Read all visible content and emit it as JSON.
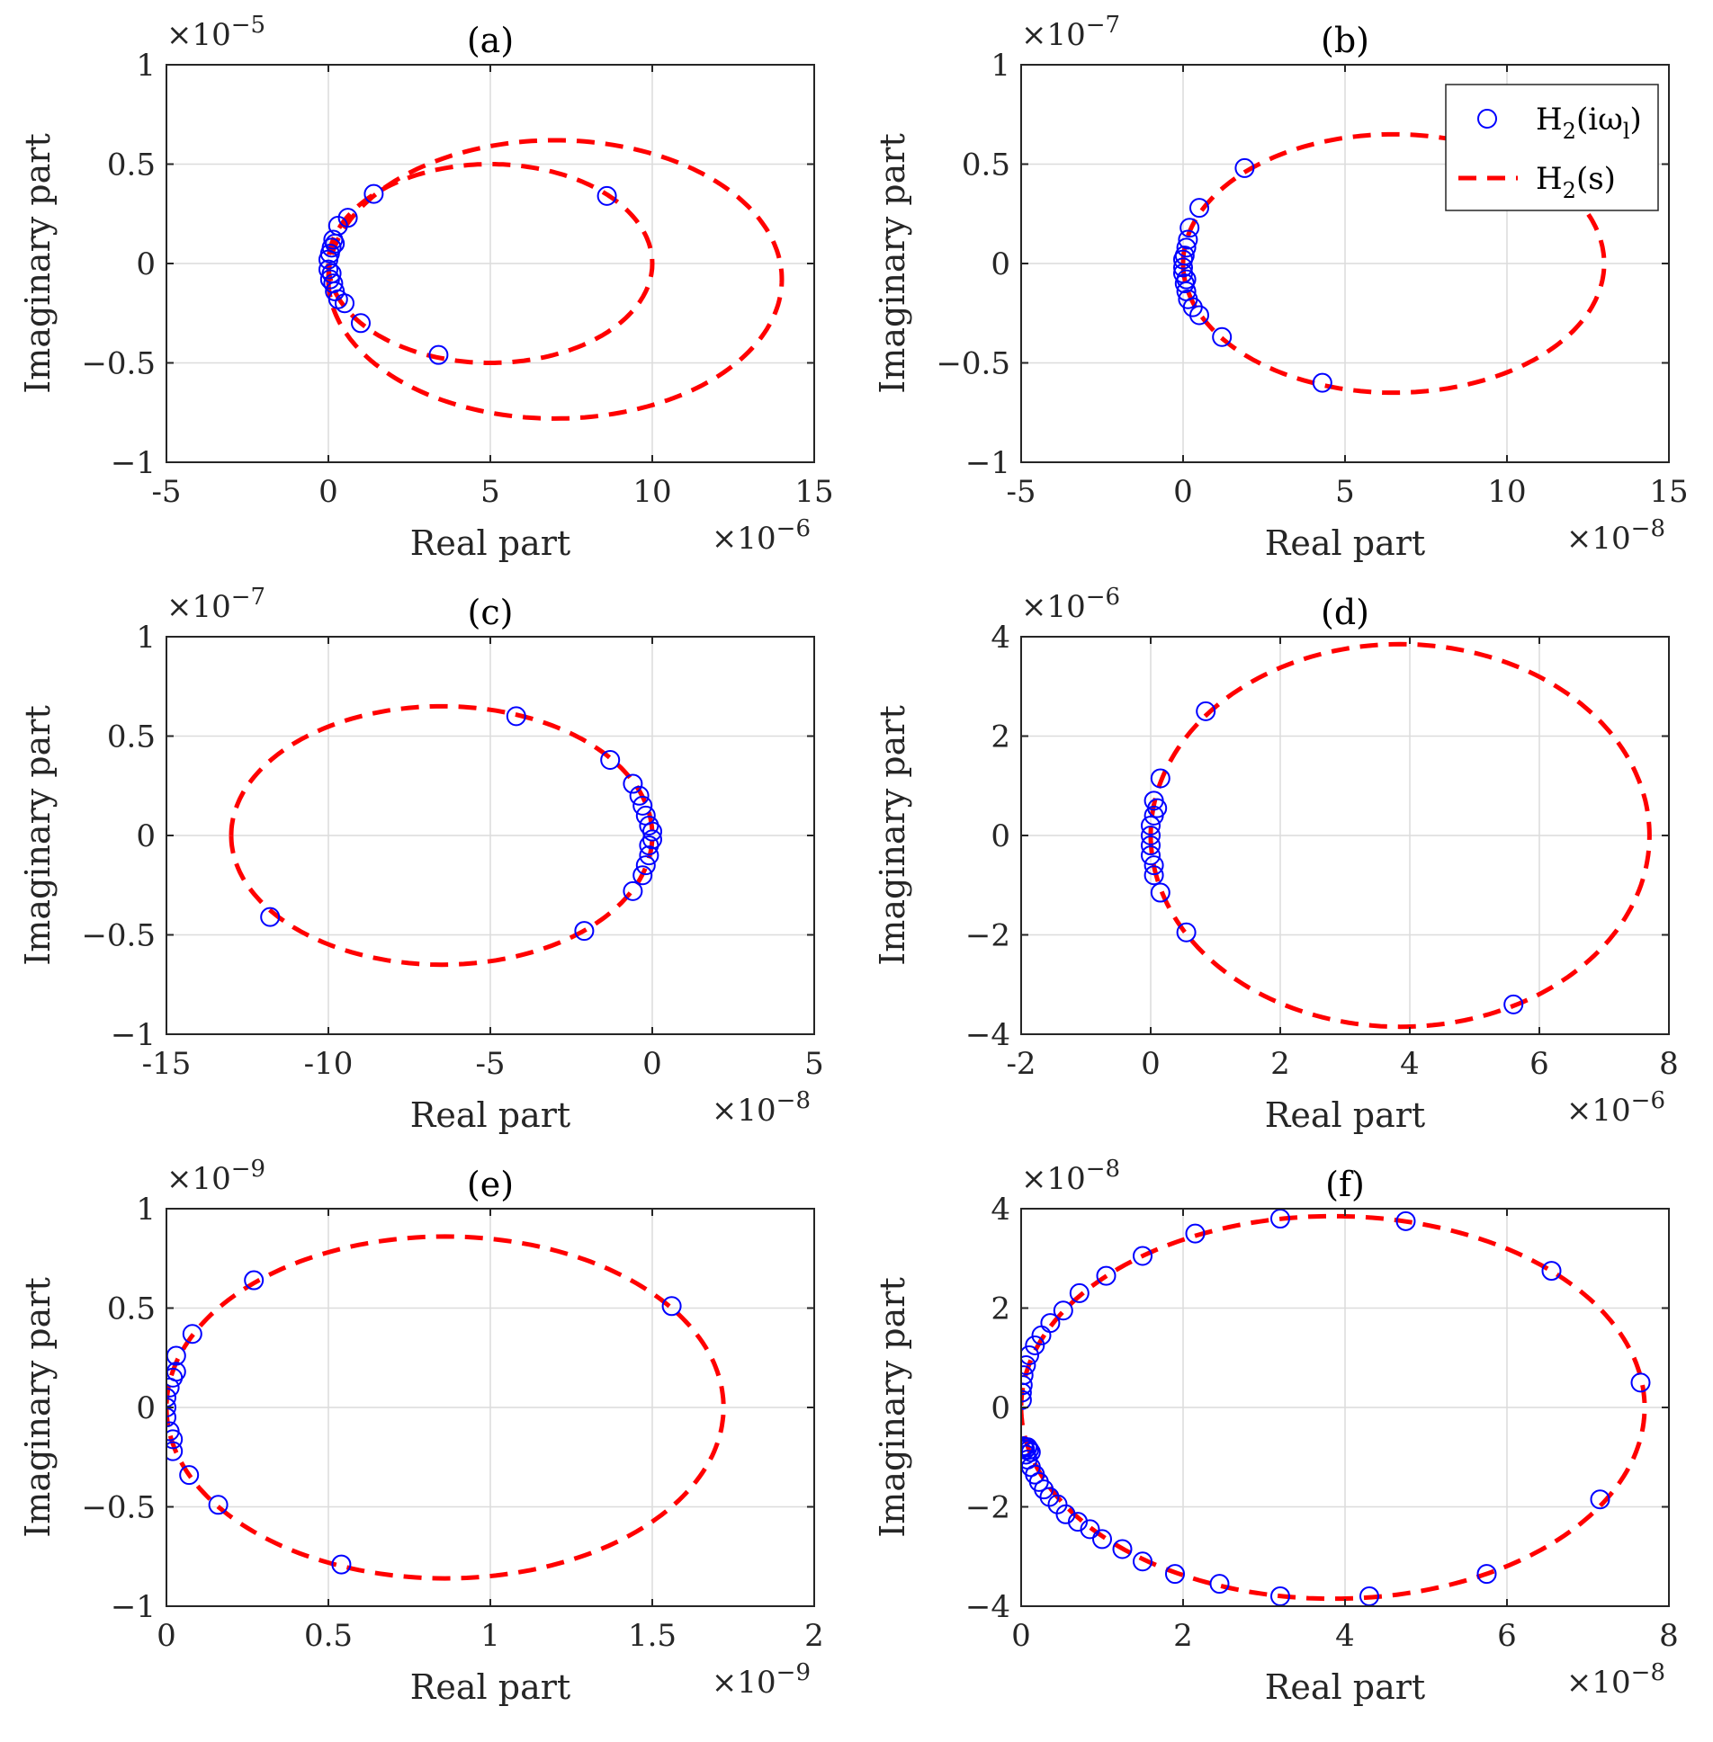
{
  "colors": {
    "samples": "#0000ff",
    "curve": "#ff0000",
    "axis": "#262626",
    "grid": "#dcdcdc"
  },
  "legend": {
    "placement": "top-right",
    "subplot": 1,
    "entries": [
      {
        "marker": "circle",
        "text": "H",
        "sub": "2",
        "suffix": "(iω",
        "sub2": "l",
        "suffix2": ")"
      },
      {
        "marker": "dashed-line",
        "text": "H",
        "sub": "2",
        "suffix": "(s)",
        "sub2": "",
        "suffix2": ""
      }
    ]
  },
  "chart_data": [
    {
      "type": "scatter",
      "title": "(a)",
      "xlabel": "Real part",
      "ylabel": "Imaginary part",
      "xlim": [
        -5,
        15
      ],
      "ylim": [
        -1,
        1
      ],
      "xticks": [
        -5,
        0,
        5,
        10,
        15
      ],
      "yticks": [
        -1,
        -0.5,
        0,
        0.5,
        1
      ],
      "xticklabels": [
        "-5",
        "0",
        "5",
        "10",
        "15"
      ],
      "yticklabels": [
        "−1",
        "−0.5",
        "0",
        "0.5",
        "1"
      ],
      "xexp": "−6",
      "yexp": "−5",
      "grid": true,
      "series": [
        {
          "kind": "curve",
          "curves": [
            {
              "cx": 5.0,
              "cy": 0.0,
              "rx": 5.0,
              "ry": 0.5,
              "phase": 0
            },
            {
              "cx": 7.0,
              "cy": -0.08,
              "rx": 7.0,
              "ry": 0.7,
              "phase": 0
            }
          ]
        },
        {
          "kind": "points",
          "x": [
            8.6,
            3.4,
            1.4,
            1.0,
            0.6,
            0.5,
            0.3,
            0.3,
            0.2,
            0.15,
            0.1,
            0.05,
            0.0,
            0.0,
            0.05,
            0.1,
            0.15,
            0.2
          ],
          "y": [
            0.34,
            -0.46,
            0.35,
            -0.3,
            0.23,
            -0.2,
            0.19,
            -0.18,
            0.1,
            -0.1,
            0.08,
            -0.08,
            0.02,
            -0.03,
            0.05,
            -0.05,
            0.12,
            -0.14
          ]
        }
      ]
    },
    {
      "type": "scatter",
      "title": "(b)",
      "xlabel": "Real part",
      "ylabel": "Imaginary part",
      "xlim": [
        -5,
        15
      ],
      "ylim": [
        -1,
        1
      ],
      "xticks": [
        -5,
        0,
        5,
        10,
        15
      ],
      "yticks": [
        -1,
        -0.5,
        0,
        0.5,
        1
      ],
      "xticklabels": [
        "-5",
        "0",
        "5",
        "10",
        "15"
      ],
      "yticklabels": [
        "−1",
        "−0.5",
        "0",
        "0.5",
        "1"
      ],
      "xexp": "−8",
      "yexp": "−7",
      "grid": true,
      "series": [
        {
          "kind": "curve",
          "curves": [
            {
              "cx": 6.5,
              "cy": 0.0,
              "rx": 6.5,
              "ry": 0.65,
              "phase": 0
            }
          ]
        },
        {
          "kind": "points",
          "x": [
            1.9,
            4.3,
            0.5,
            1.2,
            0.5,
            0.2,
            0.15,
            0.1,
            0.1,
            0.05,
            0.0,
            0.0,
            0.0,
            0.05,
            0.1,
            0.15,
            0.3
          ],
          "y": [
            0.48,
            -0.6,
            0.28,
            -0.37,
            -0.26,
            0.18,
            0.12,
            0.08,
            -0.08,
            0.04,
            0.02,
            -0.02,
            -0.05,
            -0.1,
            -0.14,
            -0.18,
            -0.22
          ]
        }
      ]
    },
    {
      "type": "scatter",
      "title": "(c)",
      "xlabel": "Real part",
      "ylabel": "Imaginary part",
      "xlim": [
        -15,
        5
      ],
      "ylim": [
        -1,
        1
      ],
      "xticks": [
        -15,
        -10,
        -5,
        0,
        5
      ],
      "yticks": [
        -1,
        -0.5,
        0,
        0.5,
        1
      ],
      "xticklabels": [
        "-15",
        "-10",
        "-5",
        "0",
        "5"
      ],
      "yticklabels": [
        "−1",
        "−0.5",
        "0",
        "0.5",
        "1"
      ],
      "xexp": "−8",
      "yexp": "−7",
      "grid": true,
      "series": [
        {
          "kind": "curve",
          "curves": [
            {
              "cx": -6.5,
              "cy": 0.0,
              "rx": 6.5,
              "ry": 0.65,
              "phase": 0
            }
          ]
        },
        {
          "kind": "points",
          "x": [
            -4.2,
            -11.8,
            -1.3,
            -2.1,
            -0.6,
            -0.6,
            -0.4,
            -0.3,
            -0.2,
            -0.1,
            -0.1,
            0.0,
            0.0,
            -0.1,
            -0.2,
            -0.3
          ],
          "y": [
            0.6,
            -0.41,
            0.38,
            -0.48,
            0.26,
            -0.28,
            0.2,
            0.15,
            0.1,
            0.05,
            -0.05,
            0.02,
            -0.02,
            -0.1,
            -0.15,
            -0.2
          ]
        }
      ]
    },
    {
      "type": "scatter",
      "title": "(d)",
      "xlabel": "Real part",
      "ylabel": "Imaginary part",
      "xlim": [
        -2,
        8
      ],
      "ylim": [
        -4,
        4
      ],
      "xticks": [
        -2,
        0,
        2,
        4,
        6,
        8
      ],
      "yticks": [
        -4,
        -2,
        0,
        2,
        4
      ],
      "xticklabels": [
        "-2",
        "0",
        "2",
        "4",
        "6",
        "8"
      ],
      "yticklabels": [
        "−4",
        "−2",
        "0",
        "2",
        "4"
      ],
      "xexp": "−6",
      "yexp": "−6",
      "grid": true,
      "series": [
        {
          "kind": "curve",
          "curves": [
            {
              "cx": 3.85,
              "cy": 0.0,
              "rx": 3.85,
              "ry": 3.85,
              "phase": 0
            }
          ]
        },
        {
          "kind": "points",
          "x": [
            0.85,
            5.6,
            0.15,
            0.55,
            0.15,
            0.05,
            0.05,
            0.0,
            0.0,
            0.0,
            0.0,
            0.05,
            0.05,
            0.1
          ],
          "y": [
            2.5,
            -3.4,
            1.15,
            -1.95,
            -1.15,
            0.7,
            0.4,
            0.2,
            0.0,
            -0.2,
            -0.4,
            -0.6,
            -0.8,
            0.55
          ]
        }
      ]
    },
    {
      "type": "scatter",
      "title": "(e)",
      "xlabel": "Real part",
      "ylabel": "Imaginary part",
      "xlim": [
        0,
        2
      ],
      "ylim": [
        -1,
        1
      ],
      "xticks": [
        0,
        0.5,
        1,
        1.5,
        2
      ],
      "yticks": [
        -1,
        -0.5,
        0,
        0.5,
        1
      ],
      "xticklabels": [
        "0",
        "0.5",
        "1",
        "1.5",
        "2"
      ],
      "yticklabels": [
        "−1",
        "−0.5",
        "0",
        "0.5",
        "1"
      ],
      "xexp": "−9",
      "yexp": "−9",
      "grid": true,
      "series": [
        {
          "kind": "curve",
          "curves": [
            {
              "cx": 0.86,
              "cy": 0.0,
              "rx": 0.86,
              "ry": 0.86,
              "phase": 0
            }
          ]
        },
        {
          "kind": "points",
          "x": [
            1.56,
            0.27,
            0.54,
            0.08,
            0.16,
            0.03,
            0.07,
            0.02,
            0.01,
            0.02,
            0.0,
            0.0,
            0.0,
            0.01,
            0.02,
            0.03
          ],
          "y": [
            0.51,
            0.64,
            -0.79,
            0.37,
            -0.49,
            0.26,
            -0.34,
            0.15,
            0.1,
            -0.22,
            0.05,
            -0.05,
            0.0,
            -0.12,
            -0.16,
            0.18
          ]
        }
      ]
    },
    {
      "type": "scatter",
      "title": "(f)",
      "xlabel": "Real part",
      "ylabel": "Imaginary part",
      "xlim": [
        0,
        8
      ],
      "ylim": [
        -4,
        4
      ],
      "xticks": [
        0,
        2,
        4,
        6,
        8
      ],
      "yticks": [
        -4,
        -2,
        0,
        2,
        4
      ],
      "xticklabels": [
        "0",
        "2",
        "4",
        "6",
        "8"
      ],
      "yticklabels": [
        "−4",
        "−2",
        "0",
        "2",
        "4"
      ],
      "xexp": "−8",
      "yexp": "−8",
      "grid": true,
      "series": [
        {
          "kind": "curve",
          "curves": [
            {
              "cx": 3.85,
              "cy": 0.0,
              "rx": 3.85,
              "ry": 3.85,
              "phase": 0
            }
          ]
        },
        {
          "kind": "points",
          "x": [
            3.2,
            4.75,
            6.55,
            7.65,
            7.15,
            5.75,
            4.3,
            3.2,
            2.45,
            1.9,
            1.5,
            1.25,
            1.0,
            0.85,
            0.7,
            0.55,
            0.45,
            0.35,
            0.28,
            0.22,
            0.17,
            0.12,
            0.08,
            0.06,
            0.05,
            0.04,
            0.03,
            2.15,
            1.5,
            1.05,
            0.72,
            0.52,
            0.36,
            0.25,
            0.17,
            0.1,
            0.06,
            0.03,
            0.02,
            0.01,
            0.01,
            0.12,
            0.1,
            0.08
          ],
          "y": [
            3.8,
            3.75,
            2.75,
            0.5,
            -1.85,
            -3.35,
            -3.8,
            -3.8,
            -3.55,
            -3.35,
            -3.1,
            -2.85,
            -2.65,
            -2.45,
            -2.3,
            -2.15,
            -1.95,
            -1.8,
            -1.65,
            -1.5,
            -1.35,
            -1.2,
            -1.05,
            -0.95,
            -0.85,
            -0.8,
            -0.78,
            3.5,
            3.05,
            2.65,
            2.3,
            1.95,
            1.7,
            1.45,
            1.25,
            1.05,
            0.85,
            0.65,
            0.45,
            0.3,
            0.15,
            -0.9,
            -0.85,
            -0.8
          ]
        }
      ]
    }
  ]
}
